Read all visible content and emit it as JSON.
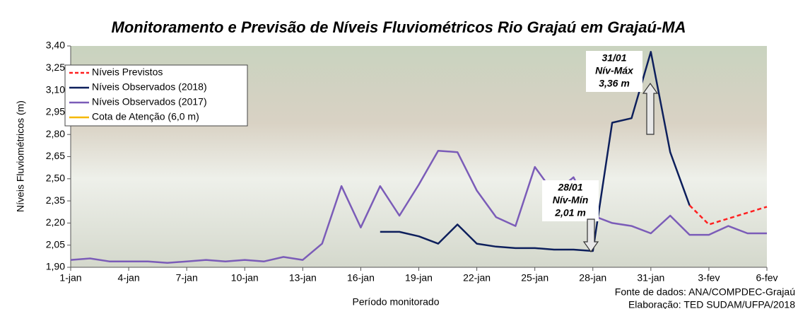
{
  "chart_data": {
    "type": "line",
    "title": "Monitoramento e Previsão de Níveis Fluviométricos Rio Grajaú em Grajaú-MA",
    "x_label": "Período monitorado",
    "y_label": "Níveis Fluviométricos (m)",
    "categories": [
      "1-jan",
      null,
      null,
      "4-jan",
      null,
      null,
      "7-jan",
      null,
      null,
      "10-jan",
      null,
      null,
      "13-jan",
      null,
      null,
      "16-jan",
      null,
      null,
      "19-jan",
      null,
      null,
      "22-jan",
      null,
      null,
      "25-jan",
      null,
      null,
      "28-jan",
      null,
      null,
      "31-jan",
      null,
      null,
      "3-fev",
      null,
      null,
      "6-fev"
    ],
    "ylim": [
      1.9,
      3.4
    ],
    "yticks": [
      {
        "value": 1.9,
        "label": "1,90"
      },
      {
        "value": 2.05,
        "label": "2,05"
      },
      {
        "value": 2.2,
        "label": "2,20"
      },
      {
        "value": 2.35,
        "label": "2,35"
      },
      {
        "value": 2.5,
        "label": "2,50"
      },
      {
        "value": 2.65,
        "label": "2,65"
      },
      {
        "value": 2.8,
        "label": "2,80"
      },
      {
        "value": 2.95,
        "label": "2,95"
      },
      {
        "value": 3.1,
        "label": "3,10"
      },
      {
        "value": 3.25,
        "label": "3,25"
      },
      {
        "value": 3.4,
        "label": "3,40"
      }
    ],
    "legend": "upper left",
    "series": [
      {
        "name": "Níveis Previstos",
        "color": "#ff2020",
        "dashed": true,
        "values": [
          null,
          null,
          null,
          null,
          null,
          null,
          null,
          null,
          null,
          null,
          null,
          null,
          null,
          null,
          null,
          null,
          null,
          null,
          null,
          null,
          null,
          null,
          null,
          null,
          null,
          null,
          null,
          null,
          null,
          null,
          null,
          null,
          2.32,
          2.19,
          2.23,
          2.27,
          2.31
        ]
      },
      {
        "name": "Níveis Observados (2018)",
        "color": "#0d1f5c",
        "values": [
          null,
          null,
          null,
          null,
          null,
          null,
          null,
          null,
          null,
          null,
          null,
          null,
          null,
          null,
          null,
          null,
          2.14,
          2.14,
          2.11,
          2.06,
          2.19,
          2.06,
          2.04,
          2.03,
          2.03,
          2.02,
          2.02,
          2.01,
          2.88,
          2.91,
          3.36,
          2.68,
          2.32,
          null,
          null,
          null,
          null
        ]
      },
      {
        "name": "Níveis Observados (2017)",
        "color": "#7b5cb8",
        "values": [
          1.95,
          1.96,
          1.94,
          1.94,
          1.94,
          1.93,
          1.94,
          1.95,
          1.94,
          1.95,
          1.94,
          1.97,
          1.95,
          2.06,
          2.45,
          2.17,
          2.45,
          2.25,
          2.46,
          2.69,
          2.68,
          2.42,
          2.24,
          2.18,
          2.58,
          2.4,
          2.51,
          2.25,
          2.2,
          2.18,
          2.13,
          2.25,
          2.12,
          2.12,
          2.18,
          2.13,
          2.13
        ]
      },
      {
        "name": "Cota de Atenção (6,0 m)",
        "color": "#f5b800",
        "values": [
          null,
          null,
          null,
          null,
          null,
          null,
          null,
          null,
          null,
          null,
          null,
          null,
          null,
          null,
          null,
          null,
          null,
          null,
          null,
          null,
          null,
          null,
          null,
          null,
          null,
          null,
          null,
          null,
          null,
          null,
          null,
          null,
          null,
          null,
          null,
          null,
          null
        ]
      }
    ],
    "annotations": [
      {
        "lines": [
          "31/01",
          "Nív-Máx",
          "3,36 m"
        ]
      },
      {
        "lines": [
          "28/01",
          "Nív-Mín",
          "2,01 m"
        ]
      }
    ],
    "footnotes": [
      "Fonte de dados: ANA/COMPDEC-Grajaú",
      "Elaboração: TED SUDAM/UFPA/2018"
    ]
  }
}
